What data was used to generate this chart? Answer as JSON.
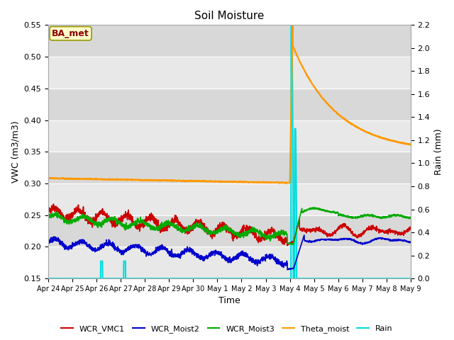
{
  "title": "Soil Moisture",
  "ylabel_left": "VWC (m3/m3)",
  "ylabel_right": "Rain (mm)",
  "xlabel": "Time",
  "ylim_left": [
    0.15,
    0.55
  ],
  "ylim_right": [
    0.0,
    2.2
  ],
  "yticks_left": [
    0.15,
    0.2,
    0.25,
    0.3,
    0.35,
    0.4,
    0.45,
    0.5,
    0.55
  ],
  "yticks_right": [
    0.0,
    0.2,
    0.4,
    0.6,
    0.8,
    1.0,
    1.2,
    1.4,
    1.6,
    1.8,
    2.0,
    2.2
  ],
  "plot_bg_color": "#e8e8e8",
  "label_box": "BA_met",
  "series": {
    "WCR_VMC1": {
      "color": "#cc0000",
      "lw": 1.2
    },
    "WCR_Moist2": {
      "color": "#0000cc",
      "lw": 1.2
    },
    "WCR_Moist3": {
      "color": "#00aa00",
      "lw": 1.2
    },
    "Theta_moist": {
      "color": "#ff9900",
      "lw": 1.5
    },
    "Rain": {
      "color": "#00dddd",
      "lw": 1.5
    }
  },
  "xtick_labels": [
    "Apr 24",
    "Apr 25",
    "Apr 26",
    "Apr 27",
    "Apr 28",
    "Apr 29",
    "Apr 30",
    "May 1",
    "May 2",
    "May 3",
    "May 4",
    "May 5",
    "May 6",
    "May 7",
    "May 8",
    "May 9"
  ],
  "grid_color": "#ffffff",
  "grid_lw": 0.8,
  "alternating_band_colors": [
    "#e8e8e8",
    "#d8d8d8"
  ]
}
